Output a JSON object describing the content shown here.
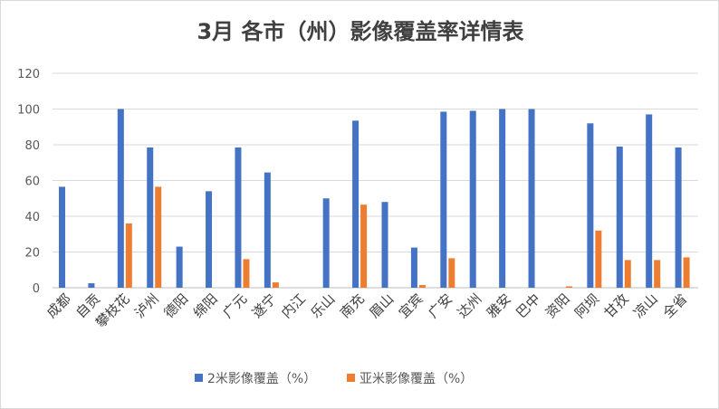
{
  "chart_data": {
    "type": "bar",
    "title": "3月 各市（州）影像覆盖率详情表",
    "categories": [
      "成都",
      "自贡",
      "攀枝花",
      "泸州",
      "德阳",
      "绵阳",
      "广元",
      "遂宁",
      "内江",
      "乐山",
      "南充",
      "眉山",
      "宜宾",
      "广安",
      "达州",
      "雅安",
      "巴中",
      "资阳",
      "阿坝",
      "甘孜",
      "凉山",
      "全省"
    ],
    "series": [
      {
        "name": "2米影像覆盖（%）",
        "color": "#4472c4",
        "values": [
          56.5,
          2.5,
          100,
          78.5,
          23,
          54,
          78.5,
          64.5,
          0,
          50,
          93.5,
          48,
          22.5,
          98.5,
          99,
          100,
          100,
          0,
          92,
          79,
          97,
          78.5
        ]
      },
      {
        "name": "亚米影像覆盖（%）",
        "color": "#ed7d31",
        "values": [
          0,
          0,
          36,
          56.5,
          0,
          0,
          16,
          3,
          0,
          0,
          46.5,
          0,
          1.5,
          16.5,
          0,
          0,
          0,
          0.8,
          32,
          15.5,
          15.5,
          17
        ]
      }
    ],
    "xlabel": "",
    "ylabel": "",
    "ylim": [
      0,
      120
    ],
    "yticks": [
      0,
      20,
      40,
      60,
      80,
      100,
      120
    ],
    "grid": true,
    "legend": "bottom"
  }
}
